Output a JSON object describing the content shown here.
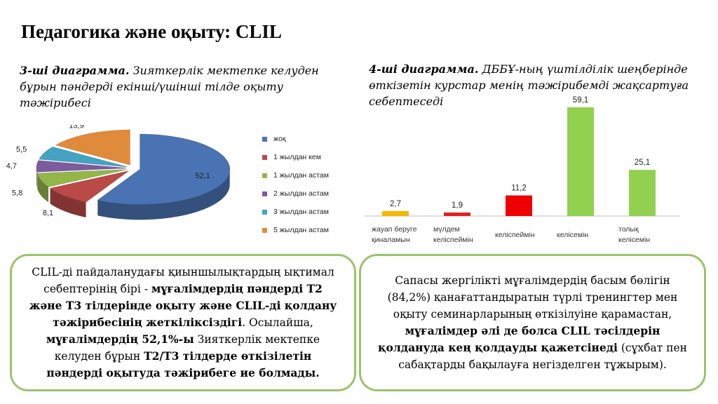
{
  "title": "Педагогика және оқыту: CLIL",
  "chart3": {
    "caption_bold": "3-ші диаграмма.",
    "caption_rest": " Зияткерлік мектепке келуден бұрын пәндерді екінші/үшінші тілде оқыту тәжірибесі"
  },
  "chart4": {
    "caption_bold": "4-ші диаграмма.",
    "caption_rest": " ДББҰ-ның үштілділік шеңберінде өткізетін курстар менің тәжірибемді жақсартуға себептеседі"
  },
  "chart_data": [
    {
      "type": "pie",
      "title": "",
      "labels": [
        "жоқ",
        "1 жылдан кем",
        "1 жылдан астам",
        "2 жылдан астам",
        "3 жылдан астам",
        "5 жылдан астам"
      ],
      "values": [
        52.1,
        8.1,
        5.8,
        4.7,
        5.5,
        13.9
      ],
      "value_labels": [
        "52,1",
        "8,1",
        "5,8",
        "4,7",
        "5,5",
        "13,9"
      ],
      "colors": [
        "#4a73b3",
        "#b94a48",
        "#93b54a",
        "#7d5c9e",
        "#43a3c1",
        "#e08b3c"
      ],
      "legend_position": "right"
    },
    {
      "type": "bar",
      "title": "",
      "categories": [
        "жауап беруге қиналамын",
        "мүлдем келіспеймін",
        "келіспеймін",
        "келісемін",
        "толық келісемін"
      ],
      "values": [
        2.7,
        1.9,
        11.2,
        59.1,
        25.1
      ],
      "value_labels": [
        "2,7",
        "1,9",
        "11,2",
        "59,1",
        "25,1"
      ],
      "colors": [
        "#f5b800",
        "#e02020",
        "#ee0000",
        "#92d050",
        "#92d050"
      ],
      "xlabel": "",
      "ylabel": "",
      "grid": false
    }
  ],
  "box_left": {
    "t1": "CLIL-ді пайдаланудағы қиыншылықтардың ықтимал себептерінің бірі - ",
    "b1": "мұғалімдердің пәндерді Т2 және Т3 тілдерінде оқыту және CLIL-ді қолдану тәжірибесінің жеткіліксіздігі",
    "t2": ". Осылайша, ",
    "b2": "мұғалімдердің 52,1%-ы",
    "t3": " Зияткерлік мектепке келуден бұрын ",
    "b3": "Т2/Т3 тілдерде өткізілетін пәндерді оқытуда тәжірибеге ие болмады."
  },
  "box_right": {
    "t1": "Сапасы жергілікті мұғалімдердің басым бөлігін (84,2%) қанағаттандыратын түрлі тренингтер мен оқыту семинарларының өткізілуіне қарамастан, ",
    "b1": "мұғалімдер әлі де болса CLIL тәсілдерін қолдануда  кең қолдауды қажетсінеді",
    "t2": " (сұхбат пен сабақтарды бақылауға негізделген тұжырым)."
  }
}
